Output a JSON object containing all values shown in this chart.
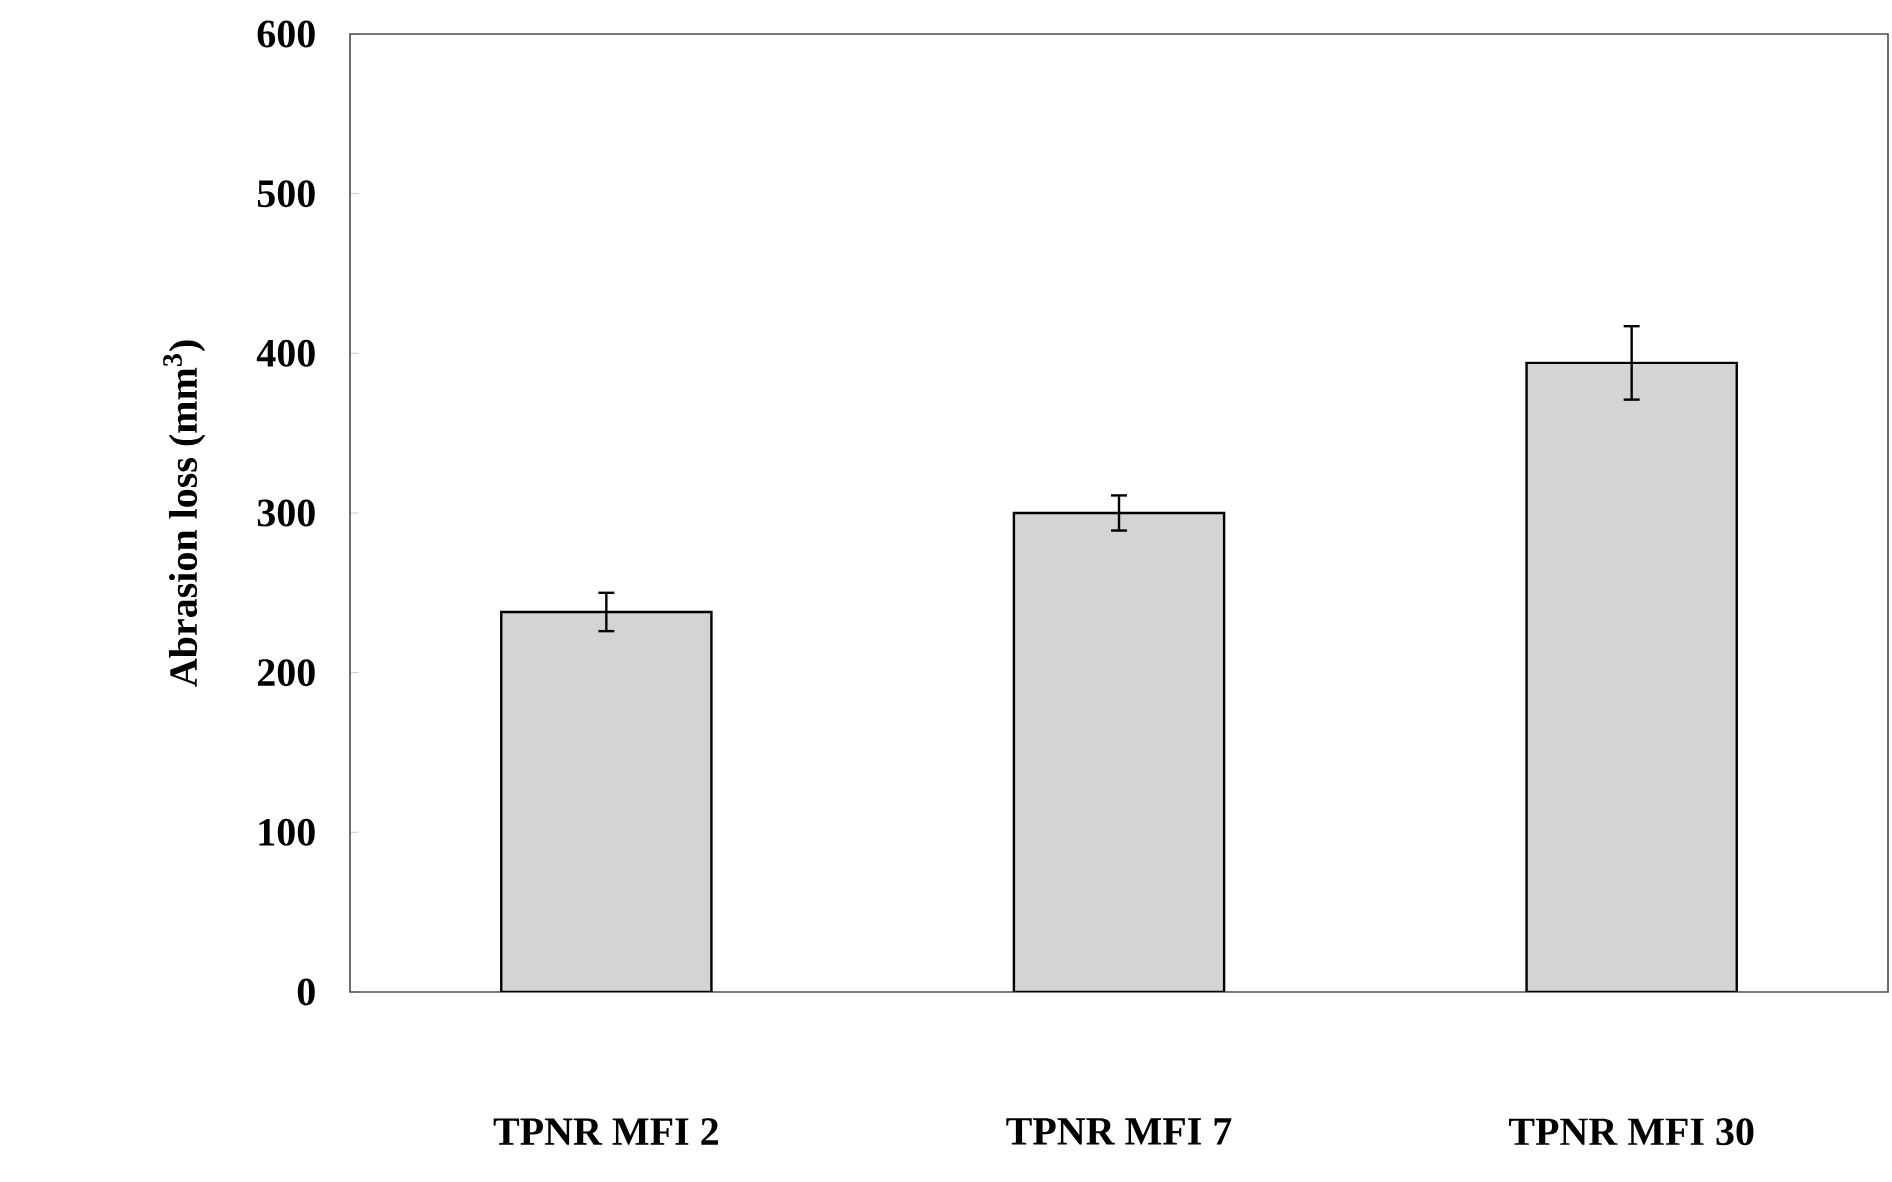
{
  "chart_data": {
    "type": "bar",
    "ylabel": "Abrasion loss (mm$^{3}$)",
    "categories": [
      "TPNR MFI 2",
      "TPNR MFI 7",
      "TPNR MFI 30"
    ],
    "values": [
      238,
      300,
      394
    ],
    "errors": [
      12,
      11,
      23
    ],
    "color": "#d4d4d4",
    "ylim": [
      0,
      600
    ],
    "yticks": [
      0,
      100,
      200,
      300,
      400,
      500,
      600
    ],
    "grid": false
  }
}
